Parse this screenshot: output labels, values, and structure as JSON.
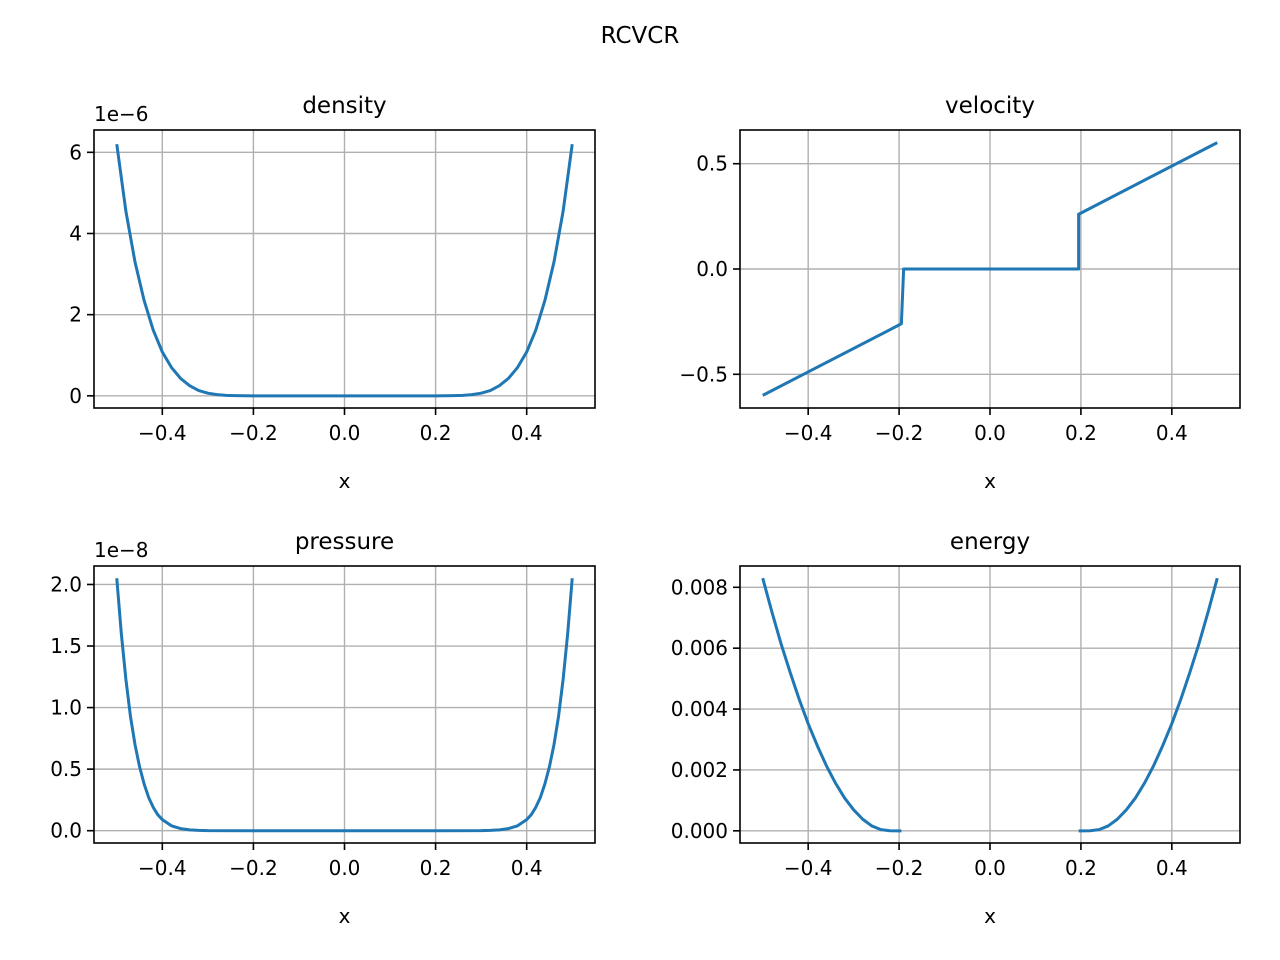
{
  "figure": {
    "suptitle": "RCVCR"
  },
  "colors": {
    "line": "#1f77b4",
    "grid": "#b0b0b0",
    "axes": "#000000"
  },
  "chart_data": [
    {
      "type": "line",
      "title": "density",
      "xlabel": "x",
      "ylabel": "",
      "offset_text": "1e−6",
      "scale": 1e-06,
      "xlim": [
        -0.55,
        0.55
      ],
      "ylim": [
        -3e-07,
        6.55e-06
      ],
      "xticks": [
        -0.4,
        -0.2,
        0.0,
        0.2,
        0.4
      ],
      "xtick_labels": [
        "−0.4",
        "−0.2",
        "0.0",
        "0.2",
        "0.4"
      ],
      "yticks": [
        0,
        2e-06,
        4e-06,
        6e-06
      ],
      "ytick_labels": [
        "0",
        "2",
        "4",
        "6"
      ],
      "grid": true,
      "legend": "none",
      "series": [
        {
          "x": [
            -0.5,
            -0.48,
            -0.46,
            -0.44,
            -0.42,
            -0.4,
            -0.38,
            -0.36,
            -0.34,
            -0.32,
            -0.3,
            -0.28,
            -0.26,
            -0.24,
            -0.2,
            -0.1,
            0.0,
            0.1,
            0.2,
            0.24,
            0.26,
            0.28,
            0.3,
            0.32,
            0.34,
            0.36,
            0.38,
            0.4,
            0.42,
            0.44,
            0.46,
            0.48,
            0.5
          ],
          "y": [
            6.2e-06,
            4.55e-06,
            3.3e-06,
            2.35e-06,
            1.62e-06,
            1.08e-06,
            7e-07,
            4.3e-07,
            2.5e-07,
            1.3e-07,
            6.5e-08,
            3e-08,
            1.2e-08,
            5e-09,
            0.0,
            0.0,
            0.0,
            0.0,
            0.0,
            5e-09,
            1.2e-08,
            3e-08,
            6.5e-08,
            1.3e-07,
            2.5e-07,
            4.3e-07,
            7e-07,
            1.08e-06,
            1.62e-06,
            2.35e-06,
            3.3e-06,
            4.55e-06,
            6.2e-06
          ]
        }
      ]
    },
    {
      "type": "line",
      "title": "velocity",
      "xlabel": "x",
      "ylabel": "",
      "offset_text": "",
      "scale": 1,
      "xlim": [
        -0.55,
        0.55
      ],
      "ylim": [
        -0.66,
        0.66
      ],
      "xticks": [
        -0.4,
        -0.2,
        0.0,
        0.2,
        0.4
      ],
      "xtick_labels": [
        "−0.4",
        "−0.2",
        "0.0",
        "0.2",
        "0.4"
      ],
      "yticks": [
        -0.5,
        0.0,
        0.5
      ],
      "ytick_labels": [
        "−0.5",
        "0.0",
        "0.5"
      ],
      "grid": true,
      "legend": "none",
      "series": [
        {
          "x": [
            -0.5,
            -0.195,
            -0.195,
            -0.19,
            0.19,
            0.195,
            0.195,
            0.5
          ],
          "y": [
            -0.6,
            -0.26,
            -0.26,
            0.0,
            0.0,
            0.0,
            0.26,
            0.6
          ]
        }
      ]
    },
    {
      "type": "line",
      "title": "pressure",
      "xlabel": "x",
      "ylabel": "",
      "offset_text": "1e−8",
      "scale": 1e-08,
      "xlim": [
        -0.55,
        0.55
      ],
      "ylim": [
        -1e-09,
        2.15e-08
      ],
      "xticks": [
        -0.4,
        -0.2,
        0.0,
        0.2,
        0.4
      ],
      "xtick_labels": [
        "−0.4",
        "−0.2",
        "0.0",
        "0.2",
        "0.4"
      ],
      "yticks": [
        0,
        5e-09,
        1e-08,
        1.5e-08,
        2e-08
      ],
      "ytick_labels": [
        "0.0",
        "0.5",
        "1.0",
        "1.5",
        "2.0"
      ],
      "grid": true,
      "legend": "none",
      "series": [
        {
          "x": [
            -0.5,
            -0.49,
            -0.48,
            -0.47,
            -0.46,
            -0.45,
            -0.44,
            -0.43,
            -0.42,
            -0.41,
            -0.4,
            -0.38,
            -0.36,
            -0.34,
            -0.32,
            -0.3,
            -0.2,
            0.0,
            0.2,
            0.3,
            0.32,
            0.34,
            0.36,
            0.38,
            0.4,
            0.41,
            0.42,
            0.43,
            0.44,
            0.45,
            0.46,
            0.47,
            0.48,
            0.49,
            0.5
          ],
          "y": [
            2.05e-08,
            1.6e-08,
            1.23e-08,
            9.3e-09,
            7e-09,
            5.2e-09,
            3.8e-09,
            2.7e-09,
            1.9e-09,
            1.3e-09,
            9e-10,
            4e-10,
            1.7e-10,
            7e-11,
            3e-11,
            1e-11,
            0.0,
            0.0,
            0.0,
            1e-11,
            3e-11,
            7e-11,
            1.7e-10,
            4e-10,
            9e-10,
            1.3e-09,
            1.9e-09,
            2.7e-09,
            3.8e-09,
            5.2e-09,
            7e-09,
            9.3e-09,
            1.23e-08,
            1.6e-08,
            2.05e-08
          ]
        }
      ]
    },
    {
      "type": "line",
      "title": "energy",
      "xlabel": "x",
      "ylabel": "",
      "offset_text": "",
      "scale": 1,
      "xlim": [
        -0.55,
        0.55
      ],
      "ylim": [
        -0.0004,
        0.0087
      ],
      "xticks": [
        -0.4,
        -0.2,
        0.0,
        0.2,
        0.4
      ],
      "xtick_labels": [
        "−0.4",
        "−0.2",
        "0.0",
        "0.2",
        "0.4"
      ],
      "yticks": [
        0.0,
        0.002,
        0.004,
        0.006,
        0.008
      ],
      "ytick_labels": [
        "0.000",
        "0.002",
        "0.004",
        "0.006",
        "0.008"
      ],
      "grid": true,
      "legend": "none",
      "series": [
        {
          "x": [
            -0.5,
            -0.48,
            -0.46,
            -0.44,
            -0.42,
            -0.4,
            -0.38,
            -0.36,
            -0.34,
            -0.32,
            -0.3,
            -0.28,
            -0.26,
            -0.24,
            -0.22,
            -0.2,
            -0.195
          ],
          "y": [
            0.0083,
            0.0072,
            0.00616,
            0.00522,
            0.00433,
            0.00352,
            0.0028,
            0.00214,
            0.00157,
            0.00108,
            0.00069,
            0.00038,
            0.00016,
            4e-05,
            3e-06,
            0.0,
            0.0
          ]
        },
        {
          "x": [
            0.195,
            0.2,
            0.22,
            0.24,
            0.26,
            0.28,
            0.3,
            0.32,
            0.34,
            0.36,
            0.38,
            0.4,
            0.42,
            0.44,
            0.46,
            0.48,
            0.5
          ],
          "y": [
            0.0,
            0.0,
            3e-06,
            4e-05,
            0.00016,
            0.00038,
            0.00069,
            0.00108,
            0.00157,
            0.00214,
            0.0028,
            0.00352,
            0.00433,
            0.00522,
            0.00616,
            0.0072,
            0.0083
          ]
        }
      ]
    }
  ]
}
